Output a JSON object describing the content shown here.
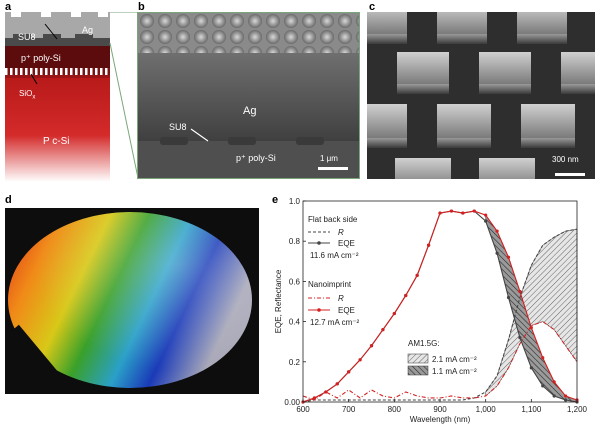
{
  "panels": {
    "a": {
      "letter": "a",
      "labels": {
        "su8": "SU8",
        "ag": "Ag",
        "psi": "p⁺ poly-Si",
        "sio2": "SiO",
        "sio2_sub": "x",
        "csi": "P c-Si"
      }
    },
    "b": {
      "letter": "b",
      "labels": {
        "ag": "Ag",
        "su8": "SU8",
        "psi": "p⁺ poly-Si",
        "scale": "1 μm"
      }
    },
    "c": {
      "letter": "c",
      "labels": {
        "scale": "300 nm"
      }
    },
    "d": {
      "letter": "d"
    },
    "e": {
      "letter": "e"
    }
  },
  "colors": {
    "flat": "#444444",
    "nano": "#d42020",
    "csi_top": "#b81a1a",
    "csi_bottom": "#ffffff",
    "frame": "#7aa67a"
  },
  "chart_data": {
    "type": "line",
    "xlabel": "Wavelength (nm)",
    "ylabel": "EQE, Reflectance",
    "xlim": [
      600,
      1200
    ],
    "ylim": [
      0,
      1.0
    ],
    "xticks": [
      600,
      700,
      800,
      900,
      1000,
      1100,
      1200
    ],
    "xtick_labels": [
      "600",
      "700",
      "800",
      "900",
      "1,000",
      "1,100",
      "1,200"
    ],
    "yticks": [
      0,
      0.2,
      0.4,
      0.6,
      0.8,
      1.0
    ],
    "ytick_labels": [
      "0.00",
      "0.2",
      "0.4",
      "0.6",
      "0.8",
      "1.0"
    ],
    "x": [
      600,
      625,
      650,
      675,
      700,
      725,
      750,
      775,
      800,
      825,
      850,
      875,
      900,
      925,
      950,
      975,
      1000,
      1025,
      1050,
      1075,
      1100,
      1125,
      1150,
      1175,
      1200
    ],
    "series": [
      {
        "name": "Flat EQE",
        "values": [
          0.0,
          0.02,
          0.05,
          0.09,
          0.15,
          0.21,
          0.28,
          0.36,
          0.44,
          0.53,
          0.63,
          0.78,
          0.94,
          0.95,
          0.94,
          0.95,
          0.9,
          0.74,
          0.52,
          0.32,
          0.17,
          0.08,
          0.03,
          0.01,
          0.0
        ]
      },
      {
        "name": "Flat R",
        "values": [
          0.0,
          0.01,
          0.01,
          0.01,
          0.01,
          0.01,
          0.01,
          0.01,
          0.01,
          0.01,
          0.01,
          0.01,
          0.01,
          0.01,
          0.01,
          0.02,
          0.05,
          0.13,
          0.31,
          0.52,
          0.68,
          0.78,
          0.82,
          0.85,
          0.86
        ]
      },
      {
        "name": "Nanoimprint EQE",
        "values": [
          0.0,
          0.02,
          0.05,
          0.09,
          0.15,
          0.21,
          0.28,
          0.36,
          0.44,
          0.53,
          0.63,
          0.78,
          0.94,
          0.95,
          0.94,
          0.95,
          0.93,
          0.85,
          0.72,
          0.55,
          0.37,
          0.22,
          0.1,
          0.03,
          0.01
        ]
      },
      {
        "name": "Nanoimprint R",
        "values": [
          0.03,
          0.01,
          0.05,
          0.02,
          0.06,
          0.02,
          0.06,
          0.03,
          0.02,
          0.05,
          0.03,
          0.02,
          0.02,
          0.03,
          0.02,
          0.02,
          0.03,
          0.08,
          0.17,
          0.29,
          0.38,
          0.4,
          0.36,
          0.28,
          0.2
        ]
      }
    ],
    "legend": {
      "flat_title": "Flat back side",
      "r_label": "R",
      "eqe_label": "EQE",
      "flat_current": "11.6 mA cm⁻²",
      "nano_title": "Nanoimprint",
      "nano_current": "12.7 mA cm⁻²",
      "am_title": "AM1.5G:",
      "am_1": "2.1 mA cm⁻²",
      "am_2": "1.1 mA cm⁻²"
    }
  }
}
